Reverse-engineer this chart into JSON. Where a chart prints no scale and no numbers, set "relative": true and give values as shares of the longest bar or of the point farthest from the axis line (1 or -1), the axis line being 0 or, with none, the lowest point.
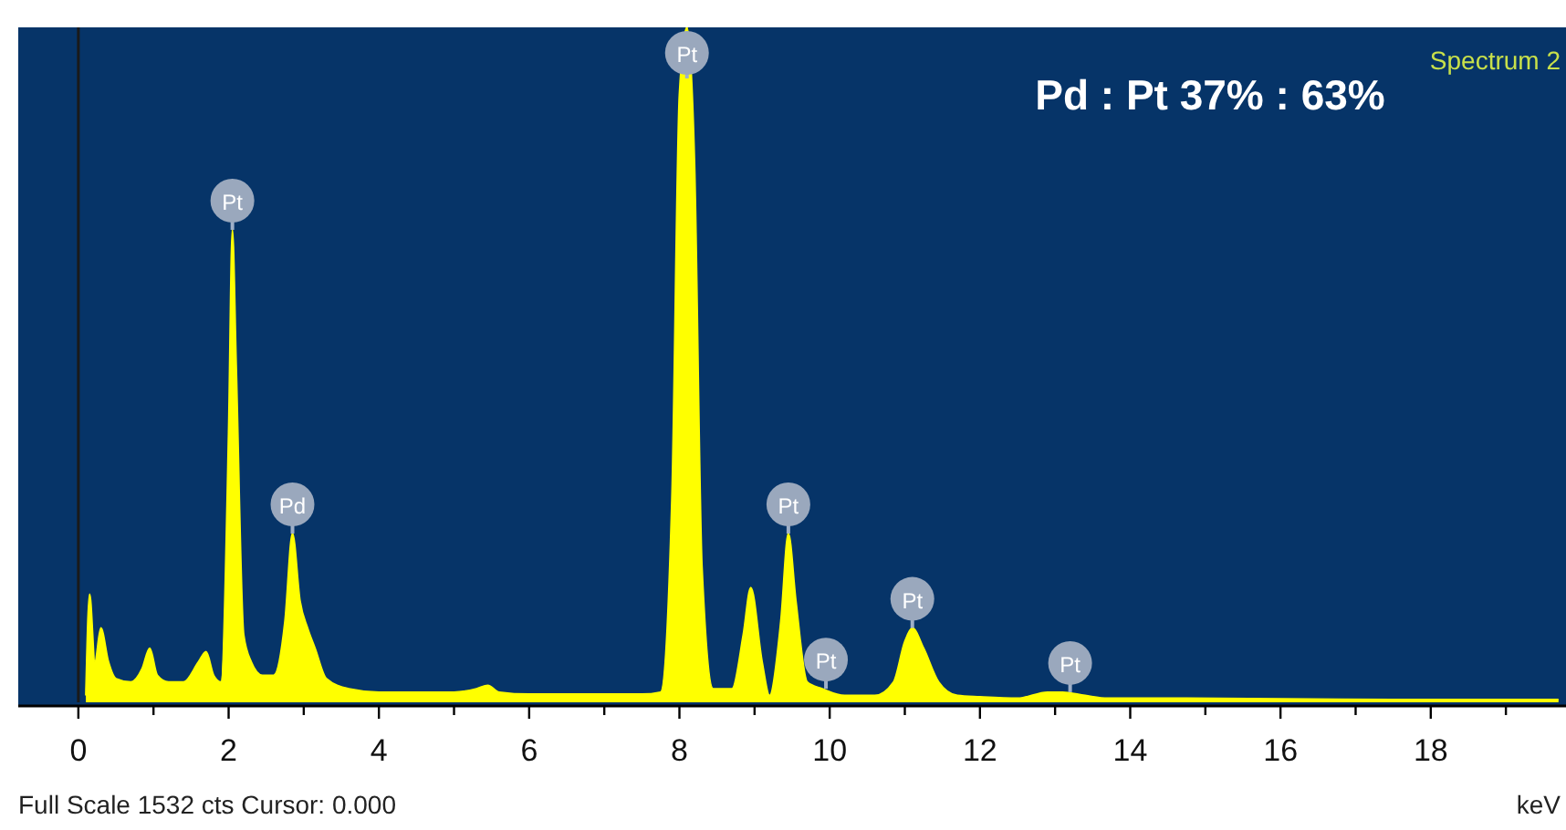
{
  "chart_data": {
    "type": "area",
    "relative": true,
    "xlabel": "keV",
    "color": "#ffff00",
    "x": [
      0.1,
      0.15,
      0.22,
      0.3,
      0.4,
      0.5,
      0.7,
      0.85,
      0.95,
      1.05,
      1.2,
      1.4,
      1.6,
      1.7,
      1.8,
      1.9,
      2.0,
      2.05,
      2.1,
      2.2,
      2.3,
      2.45,
      2.6,
      2.75,
      2.85,
      2.95,
      3.05,
      3.15,
      3.3,
      3.6,
      4.0,
      4.5,
      5.0,
      5.3,
      5.45,
      5.6,
      6.0,
      6.5,
      7.0,
      7.5,
      7.75,
      7.9,
      8.0,
      8.1,
      8.2,
      8.3,
      8.45,
      8.7,
      8.85,
      8.95,
      9.1,
      9.2,
      9.35,
      9.45,
      9.55,
      9.7,
      9.9,
      10.2,
      10.6,
      10.85,
      11.0,
      11.1,
      11.25,
      11.45,
      11.7,
      12.0,
      12.5,
      12.9,
      13.1,
      13.4,
      13.7,
      14.5,
      16,
      18,
      19.7
    ],
    "values": [
      0.01,
      0.16,
      0.06,
      0.11,
      0.06,
      0.035,
      0.03,
      0.05,
      0.08,
      0.04,
      0.03,
      0.03,
      0.06,
      0.075,
      0.04,
      0.03,
      0.4,
      0.7,
      0.5,
      0.1,
      0.06,
      0.04,
      0.04,
      0.12,
      0.25,
      0.15,
      0.11,
      0.08,
      0.035,
      0.02,
      0.015,
      0.015,
      0.015,
      0.02,
      0.025,
      0.015,
      0.012,
      0.012,
      0.012,
      0.012,
      0.015,
      0.3,
      0.9,
      1.0,
      0.8,
      0.2,
      0.02,
      0.02,
      0.1,
      0.17,
      0.06,
      0.01,
      0.12,
      0.25,
      0.15,
      0.03,
      0.02,
      0.01,
      0.01,
      0.03,
      0.09,
      0.11,
      0.08,
      0.03,
      0.01,
      0.008,
      0.006,
      0.015,
      0.015,
      0.01,
      0.006,
      0.006,
      0.005,
      0.004,
      0.004
    ],
    "xlim": [
      -0.8,
      19.8
    ],
    "xticks": [
      0,
      {
        "value": 1,
        "label": null
      },
      2,
      {
        "value": 3,
        "label": null
      },
      4,
      {
        "value": 5,
        "label": null
      },
      6,
      {
        "value": 7,
        "label": null
      },
      8,
      {
        "value": 9,
        "label": null
      },
      10,
      {
        "value": 11,
        "label": null
      },
      12,
      {
        "value": 13,
        "label": null
      },
      14,
      {
        "value": 15,
        "label": null
      },
      16,
      {
        "value": 17,
        "label": null
      },
      18,
      {
        "value": 19,
        "label": null
      }
    ],
    "annotations": [
      {
        "text": "Pt",
        "x": 2.05,
        "y": 0.7
      },
      {
        "text": "Pd",
        "x": 2.85,
        "y": 0.25
      },
      {
        "text": "Pt",
        "x": 8.1,
        "y": 1.0
      },
      {
        "text": "Pt",
        "x": 9.45,
        "y": 0.25
      },
      {
        "text": "Pt",
        "x": 9.95,
        "y": 0.02
      },
      {
        "text": "Pt",
        "x": 11.1,
        "y": 0.11
      },
      {
        "text": "Pt",
        "x": 13.2,
        "y": 0.015
      },
      "Pd : Pt  37% : 63%",
      "Spectrum 2",
      "Full Scale 1532 cts Cursor: 0.000"
    ]
  }
}
